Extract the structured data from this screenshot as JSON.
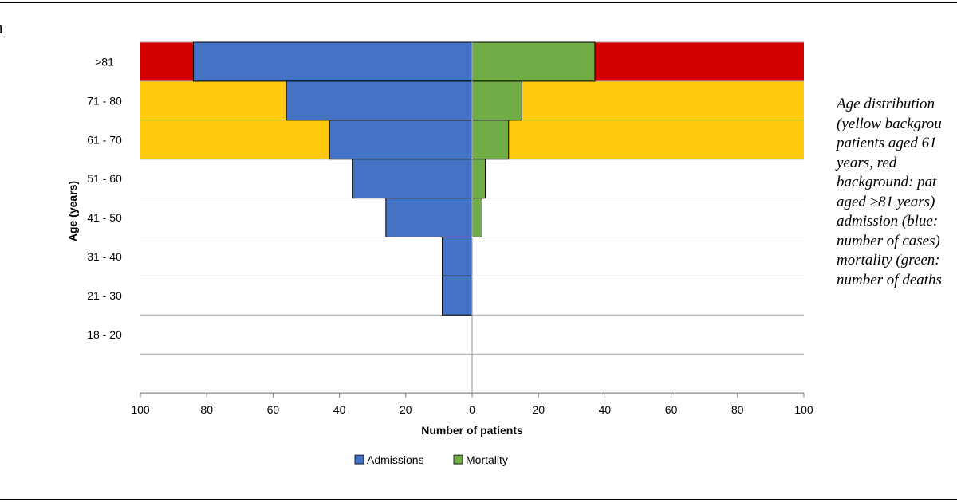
{
  "panel_letter": "a",
  "caption": "Age distribution\n(yellow backgrou\npatients aged 61\nyears, red\nbackground: pat\naged ≥81 years)\nadmission (blue:\nnumber of cases)\nmortality (green:\nnumber of deaths",
  "colors": {
    "admissions": "#4472C4",
    "mortality": "#70AD47",
    "yellow_band": "#FFC90E",
    "red_band": "#D40000",
    "grid": "#A6A6A6"
  },
  "chart_data": {
    "type": "bar",
    "orientation": "horizontal-population-pyramid",
    "categories": [
      ">81",
      "71 - 80",
      "61 - 70",
      "51 - 60",
      "41 - 50",
      "31 - 40",
      "21 - 30",
      "18 - 20"
    ],
    "series": [
      {
        "name": "Admissions",
        "side": "left",
        "values": [
          84,
          56,
          43,
          36,
          26,
          9,
          9,
          0
        ]
      },
      {
        "name": "Mortality",
        "side": "right",
        "values": [
          37,
          15,
          11,
          4,
          3,
          0,
          0,
          0
        ]
      }
    ],
    "background_bands": [
      {
        "categories": [
          ">81"
        ],
        "color": "red"
      },
      {
        "categories": [
          "71 - 80",
          "61 - 70"
        ],
        "color": "yellow"
      }
    ],
    "xlabel": "Number of patients",
    "ylabel": "Age (years)",
    "xlim": [
      -100,
      100
    ],
    "x_tick_labels": [
      "100",
      "80",
      "60",
      "40",
      "20",
      "0",
      "20",
      "40",
      "60",
      "80",
      "100"
    ],
    "grid": "horizontal",
    "legend": {
      "position": "bottom",
      "entries": [
        "Admissions",
        "Mortality"
      ]
    }
  }
}
